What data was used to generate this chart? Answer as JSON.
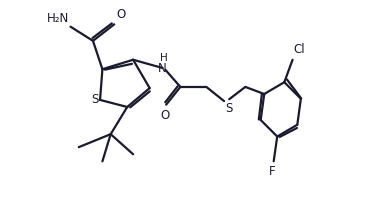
{
  "background_color": "#ffffff",
  "line_color": "#1a1a2e",
  "line_width": 1.6,
  "font_size": 8.5,
  "xlim": [
    0,
    10.5
  ],
  "ylim": [
    0,
    9
  ],
  "figsize": [
    3.82,
    2.14
  ],
  "dpi": 100
}
